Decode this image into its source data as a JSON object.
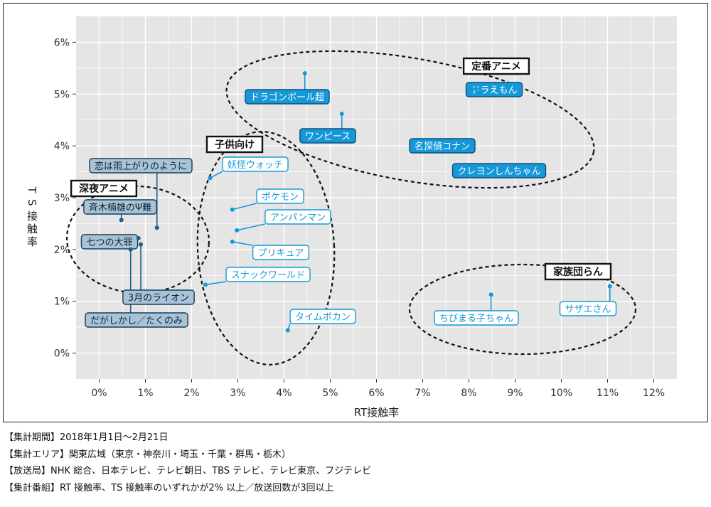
{
  "chart_data": {
    "type": "scatter",
    "xlabel": "RT接触率",
    "ylabel": "TS接触率",
    "xlim": [
      -0.5,
      12.5
    ],
    "ylim": [
      -0.5,
      6.5
    ],
    "x_ticks": [
      0,
      1,
      2,
      3,
      4,
      5,
      6,
      7,
      8,
      9,
      10,
      11,
      12
    ],
    "y_ticks": [
      0,
      1,
      2,
      3,
      4,
      5,
      6
    ],
    "x_tick_labels": [
      "0%",
      "1%",
      "2%",
      "3%",
      "4%",
      "5%",
      "6%",
      "7%",
      "8%",
      "9%",
      "10%",
      "11%",
      "12%"
    ],
    "y_tick_labels": [
      "0%",
      "1%",
      "2%",
      "3%",
      "4%",
      "5%",
      "6%"
    ],
    "grid": true,
    "colors": {
      "panel": "#e5e5e5",
      "grid": "#ffffff",
      "teiban": "#1598d8",
      "kodomo": "#1598d8",
      "shinya": "#1d5e87",
      "kazoku": "#1598d8"
    },
    "groups": [
      {
        "id": "teiban",
        "label": "定番アニメ"
      },
      {
        "id": "kodomo",
        "label": "子供向け"
      },
      {
        "id": "shinya",
        "label": "深夜アニメ"
      },
      {
        "id": "kazoku",
        "label": "家族団らん"
      }
    ],
    "points": [
      {
        "label": "ドラゴンボール超",
        "x": 4.45,
        "y": 5.4,
        "group": "teiban"
      },
      {
        "label": "ワンピース",
        "x": 5.25,
        "y": 4.62,
        "group": "teiban"
      },
      {
        "label": "ドラえもん",
        "x": 8.15,
        "y": 5.1,
        "group": "teiban"
      },
      {
        "label": "名探偵コナン",
        "x": 7.02,
        "y": 4.0,
        "group": "teiban"
      },
      {
        "label": "クレヨンしんちゃん",
        "x": 8.4,
        "y": 3.52,
        "group": "teiban"
      },
      {
        "label": "妖怪ウォッチ",
        "x": 2.4,
        "y": 3.38,
        "group": "kodomo"
      },
      {
        "label": "ポケモン",
        "x": 2.88,
        "y": 2.77,
        "group": "kodomo"
      },
      {
        "label": "アンパンマン",
        "x": 2.98,
        "y": 2.37,
        "group": "kodomo"
      },
      {
        "label": "プリキュア",
        "x": 2.88,
        "y": 2.15,
        "group": "kodomo"
      },
      {
        "label": "スナックワールド",
        "x": 2.3,
        "y": 1.32,
        "group": "kodomo"
      },
      {
        "label": "タイムボカン",
        "x": 4.08,
        "y": 0.44,
        "group": "kodomo"
      },
      {
        "label": "恋は雨上がりのように",
        "x": 1.25,
        "y": 2.42,
        "group": "shinya"
      },
      {
        "label": "斉木楠雄のΨ難",
        "x": 0.48,
        "y": 2.57,
        "group": "shinya"
      },
      {
        "label": "七つの大罪",
        "x": 0.85,
        "y": 2.22,
        "group": "shinya"
      },
      {
        "label": "3月のライオン",
        "x": 0.9,
        "y": 2.1,
        "group": "shinya"
      },
      {
        "label": "だがしかし／たくのみ",
        "x": 0.68,
        "y": 2.0,
        "group": "shinya"
      },
      {
        "label": "ちびまる子ちゃん",
        "x": 8.48,
        "y": 1.13,
        "group": "kazoku"
      },
      {
        "label": "サザエさん",
        "x": 11.05,
        "y": 1.29,
        "group": "kazoku"
      }
    ]
  },
  "notes": [
    "【集計期間】2018年1月1日〜2月21日",
    "【集計エリア】関東広域（東京・神奈川・埼玉・千葉・群馬・栃木）",
    "【放送局】NHK 総合、日本テレビ、テレビ朝日、TBS テレビ、テレビ東京、フジテレビ",
    "【集計番組】RT 接触率、TS 接触率のいずれかが2% 以上／放送回数が3回以上"
  ]
}
